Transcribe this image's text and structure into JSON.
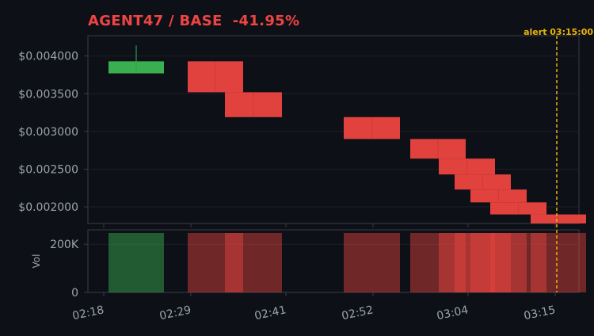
{
  "header": {
    "pair": "AGENT47 / BASE",
    "change": "-41.95%"
  },
  "colors": {
    "up": "#3cb552",
    "down": "#e8443f",
    "alert": "#eab308",
    "background": "#0e1017",
    "panel_border": "#3a3d46",
    "grid": "#1c1f27",
    "text": "#9ca3af"
  },
  "chart_data": {
    "type": "candlestick",
    "price_axis": {
      "ticks": [
        0.004,
        0.0035,
        0.003,
        0.0025,
        0.002
      ],
      "tick_labels": [
        "$0.004000",
        "$0.003500",
        "$0.003000",
        "$0.002500",
        "$0.002000"
      ],
      "ylim": [
        0.00178,
        0.00427
      ]
    },
    "volume_axis": {
      "label": "Vol",
      "ticks": [
        200000,
        0
      ],
      "tick_labels": [
        "200K",
        "0"
      ],
      "ylim": [
        0,
        260000
      ]
    },
    "time_axis": {
      "tick_labels": [
        "02:18",
        "02:29",
        "02:41",
        "02:52",
        "03:04",
        "03:15"
      ],
      "tick_minutes": [
        138,
        149,
        161,
        172,
        184,
        195
      ],
      "xlim_minutes": [
        136,
        198
      ]
    },
    "candles": [
      {
        "t0": 138.6,
        "t1": 145.6,
        "open": 0.00377,
        "close": 0.00393,
        "high": 0.00414,
        "low": 0.00377,
        "volume": 250000
      },
      {
        "t0": 148.6,
        "t1": 155.6,
        "open": 0.00393,
        "close": 0.00352,
        "high": 0.00393,
        "low": 0.00352,
        "volume": 250000
      },
      {
        "t0": 153.3,
        "t1": 160.5,
        "open": 0.00352,
        "close": 0.00319,
        "high": 0.00352,
        "low": 0.00319,
        "volume": 250000
      },
      {
        "t0": 168.3,
        "t1": 175.4,
        "open": 0.00319,
        "close": 0.0029,
        "high": 0.00319,
        "low": 0.0029,
        "volume": 250000
      },
      {
        "t0": 176.7,
        "t1": 183.7,
        "open": 0.0029,
        "close": 0.00264,
        "high": 0.0029,
        "low": 0.00264,
        "volume": 250000
      },
      {
        "t0": 180.3,
        "t1": 187.4,
        "open": 0.00264,
        "close": 0.00243,
        "high": 0.00264,
        "low": 0.00243,
        "volume": 250000
      },
      {
        "t0": 182.3,
        "t1": 189.4,
        "open": 0.00243,
        "close": 0.00223,
        "high": 0.00243,
        "low": 0.00223,
        "volume": 250000
      },
      {
        "t0": 184.3,
        "t1": 191.4,
        "open": 0.00223,
        "close": 0.00206,
        "high": 0.00223,
        "low": 0.00206,
        "volume": 250000
      },
      {
        "t0": 186.8,
        "t1": 193.9,
        "open": 0.00206,
        "close": 0.0019,
        "high": 0.00206,
        "low": 0.0019,
        "volume": 250000
      },
      {
        "t0": 191.9,
        "t1": 198.9,
        "open": 0.0019,
        "close": 0.00178,
        "high": 0.0019,
        "low": 0.00178,
        "volume": 250000
      }
    ],
    "alert": {
      "time_minutes": 195.2,
      "label": "alert 03:15:00"
    },
    "grid": true,
    "legend": "none"
  }
}
